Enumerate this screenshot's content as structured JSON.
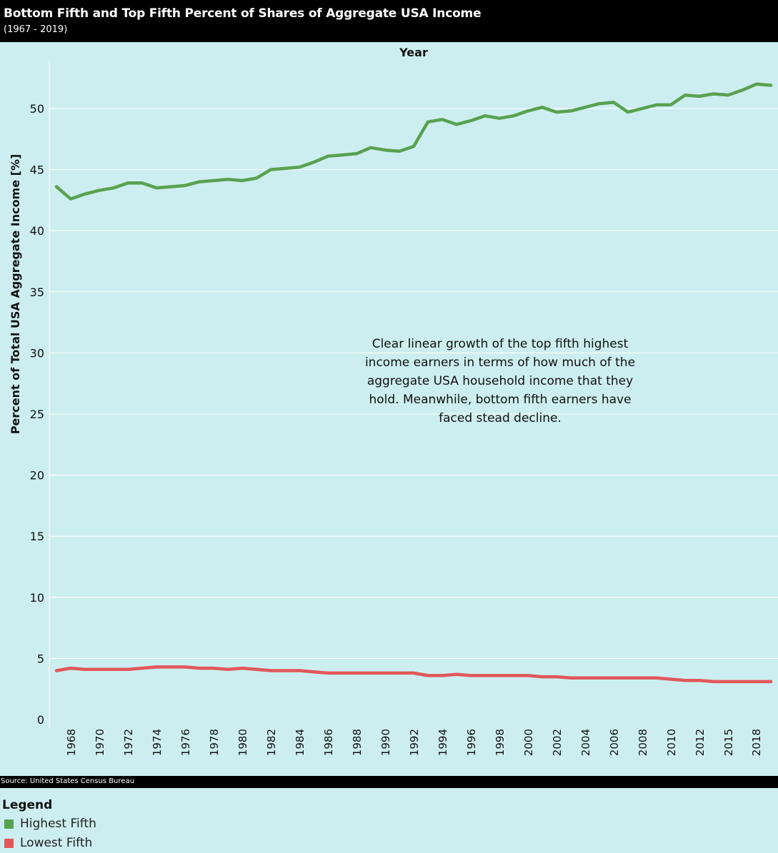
{
  "header": {
    "title": "Bottom Fifth and Top Fifth Percent of Shares of Aggregate USA Income",
    "subtitle": "(1967 - 2019)"
  },
  "footer": {
    "source": "Source: United States Census Bureau"
  },
  "legend": {
    "title": "Legend",
    "items": [
      {
        "label": "Highest Fifth",
        "color": "#59a14f"
      },
      {
        "label": "Lowest Fifth",
        "color": "#e15759"
      }
    ]
  },
  "chart_data": {
    "type": "line",
    "xlabel": "Year",
    "ylabel": "Percent of Total USA Aggregate Income [%]",
    "ylim": [
      0,
      55
    ],
    "yticks": [
      0,
      5,
      10,
      15,
      20,
      25,
      30,
      35,
      40,
      45,
      50
    ],
    "xtick_labels": [
      "1968",
      "1970",
      "1972",
      "1974",
      "1976",
      "1978",
      "1980",
      "1982",
      "1984",
      "1986",
      "1988",
      "1990",
      "1992",
      "1994",
      "1996",
      "1998",
      "2000",
      "2002",
      "2004",
      "2006",
      "2008",
      "2010",
      "2012",
      "2015",
      "2018"
    ],
    "grid": true,
    "annotation": "Clear linear growth of the top fifth highest income earners in terms of how much of the aggregate USA household income that they hold. Meanwhile, bottom fifth earners have faced stead decline.",
    "series": [
      {
        "name": "Highest Fifth",
        "color": "#59a14f",
        "values": [
          43.6,
          42.6,
          43.0,
          43.3,
          43.5,
          43.9,
          43.9,
          43.5,
          43.6,
          43.7,
          44.0,
          44.1,
          44.2,
          44.1,
          44.3,
          45.0,
          45.1,
          45.2,
          45.6,
          46.1,
          46.2,
          46.3,
          46.8,
          46.6,
          46.5,
          46.9,
          48.9,
          49.1,
          48.7,
          49.0,
          49.4,
          49.2,
          49.4,
          49.8,
          50.1,
          49.7,
          49.8,
          50.1,
          50.4,
          50.5,
          49.7,
          50.0,
          50.3,
          50.3,
          51.1,
          51.0,
          51.2,
          51.1,
          51.5,
          52.0,
          51.9
        ]
      },
      {
        "name": "Lowest Fifth",
        "color": "#e15759",
        "values": [
          4.0,
          4.2,
          4.1,
          4.1,
          4.1,
          4.1,
          4.2,
          4.3,
          4.3,
          4.3,
          4.2,
          4.2,
          4.1,
          4.2,
          4.1,
          4.0,
          4.0,
          4.0,
          3.9,
          3.8,
          3.8,
          3.8,
          3.8,
          3.8,
          3.8,
          3.8,
          3.6,
          3.6,
          3.7,
          3.6,
          3.6,
          3.6,
          3.6,
          3.6,
          3.5,
          3.5,
          3.4,
          3.4,
          3.4,
          3.4,
          3.4,
          3.4,
          3.4,
          3.3,
          3.2,
          3.2,
          3.1,
          3.1,
          3.1,
          3.1,
          3.1
        ]
      }
    ]
  }
}
